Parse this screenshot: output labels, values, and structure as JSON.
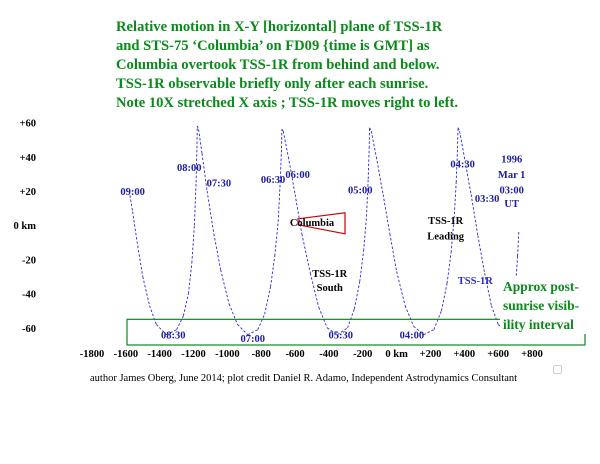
{
  "title_lines": [
    "Relative motion in X-Y [horizontal] plane of TSS-1R",
    "and STS-75 ‘Columbia’ on FD09 {time is GMT] as",
    "Columbia overtook TSS-1R from behind and below.",
    "TSS-1R observable briefly only after each sunrise.",
    "Note 10X stretched X axis ; TSS-1R moves right to left."
  ],
  "credit": "author James Oberg, June 2014; plot credit Daniel R. Adamo, Independent Astrodynamics Consultant",
  "colors": {
    "title": "#0a8a1a",
    "curve": "#2b2bd6",
    "time_label": "#1c1ca8",
    "axis_text": "#000000",
    "columbia_triangle": "#cc0000",
    "interval_box": "#0a8a1a"
  },
  "chart_data": {
    "type": "line",
    "xlim": [
      -1800,
      800
    ],
    "ylim": [
      -70,
      65
    ],
    "x_unit": "km",
    "y_unit": "km",
    "x_ticks": [
      -1800,
      -1600,
      -1400,
      -1200,
      -1000,
      -800,
      -600,
      -400,
      -200,
      0,
      200,
      400,
      600,
      800
    ],
    "x_tick_labels": [
      "-1800",
      "-1600",
      "-1400",
      "-1200",
      "-1000",
      "-800",
      "-600",
      "-400",
      "-200",
      "0 km",
      "+200",
      "+400",
      "+600",
      "+800"
    ],
    "y_ticks": [
      60,
      40,
      20,
      0,
      -20,
      -40,
      -60
    ],
    "y_tick_labels": [
      "+60",
      "+40",
      "+20",
      "0 km",
      "-20",
      "-40",
      "-60"
    ],
    "series": [
      {
        "points": [
          [
            -1580,
            20
          ],
          [
            -1560,
            8
          ],
          [
            -1530,
            -12
          ],
          [
            -1500,
            -30
          ],
          [
            -1460,
            -47
          ],
          [
            -1420,
            -58
          ],
          [
            -1360,
            -64
          ],
          [
            -1300,
            -61
          ],
          [
            -1260,
            -53
          ],
          [
            -1230,
            -40
          ],
          [
            -1210,
            -22
          ],
          [
            -1195,
            0
          ],
          [
            -1185,
            25
          ],
          [
            -1180,
            45
          ],
          [
            -1178,
            58
          ],
          [
            -1170,
            56
          ],
          [
            -1150,
            42
          ],
          [
            -1120,
            20
          ],
          [
            -1080,
            -5
          ],
          [
            -1040,
            -26
          ],
          [
            -990,
            -46
          ],
          [
            -940,
            -58
          ],
          [
            -880,
            -64
          ],
          [
            -820,
            -61
          ],
          [
            -780,
            -52
          ],
          [
            -745,
            -36
          ],
          [
            -720,
            -18
          ],
          [
            -700,
            2
          ],
          [
            -688,
            25
          ],
          [
            -680,
            45
          ],
          [
            -678,
            56
          ],
          [
            -670,
            55
          ],
          [
            -640,
            40
          ],
          [
            -600,
            18
          ],
          [
            -560,
            -5
          ],
          [
            -510,
            -28
          ],
          [
            -460,
            -48
          ],
          [
            -410,
            -60
          ],
          [
            -350,
            -64
          ],
          [
            -290,
            -60
          ],
          [
            -250,
            -49
          ],
          [
            -218,
            -33
          ],
          [
            -195,
            -15
          ],
          [
            -178,
            5
          ],
          [
            -168,
            27
          ],
          [
            -162,
            45
          ],
          [
            -160,
            57
          ],
          [
            -150,
            55
          ],
          [
            -120,
            40
          ],
          [
            -80,
            18
          ],
          [
            -40,
            -5
          ],
          [
            0,
            -27
          ],
          [
            50,
            -47
          ],
          [
            100,
            -59
          ],
          [
            160,
            -64
          ],
          [
            220,
            -61
          ],
          [
            265,
            -50
          ],
          [
            298,
            -34
          ],
          [
            322,
            -16
          ],
          [
            340,
            4
          ],
          [
            352,
            25
          ],
          [
            360,
            45
          ],
          [
            363,
            57
          ],
          [
            372,
            55
          ],
          [
            400,
            40
          ],
          [
            440,
            18
          ],
          [
            480,
            -6
          ],
          [
            520,
            -28
          ],
          [
            560,
            -47
          ],
          [
            600,
            -58
          ],
          [
            640,
            -61
          ],
          [
            670,
            -55
          ],
          [
            690,
            -45
          ],
          [
            705,
            -32
          ],
          [
            715,
            -18
          ],
          [
            722,
            -4
          ]
        ]
      }
    ],
    "time_labels": [
      {
        "text": "09:00",
        "x": -1560,
        "y": 20
      },
      {
        "text": "08:30",
        "x": -1320,
        "y": -64
      },
      {
        "text": "08:00",
        "x": -1225,
        "y": 34
      },
      {
        "text": "07:30",
        "x": -1050,
        "y": 25
      },
      {
        "text": "07:00",
        "x": -850,
        "y": -66
      },
      {
        "text": "06:30",
        "x": -730,
        "y": 27
      },
      {
        "text": "06:00",
        "x": -585,
        "y": 30
      },
      {
        "text": "05:30",
        "x": -330,
        "y": -64
      },
      {
        "text": "05:00",
        "x": -215,
        "y": 21
      },
      {
        "text": "04:30",
        "x": 390,
        "y": 36
      },
      {
        "text": "04:00",
        "x": 90,
        "y": -64
      },
      {
        "text": "03:30",
        "x": 535,
        "y": 16
      },
      {
        "text": "03:00",
        "x": 680,
        "y": 21
      },
      {
        "text": "1996",
        "x": 680,
        "y": 39
      },
      {
        "text": "Mar 1",
        "x": 680,
        "y": 30
      },
      {
        "text": "UT",
        "x": 680,
        "y": 13
      }
    ],
    "annotations": [
      {
        "text": "Columbia",
        "x": -500,
        "y": 2
      },
      {
        "text": "TSS-1R",
        "x": 290,
        "y": 3
      },
      {
        "text": "Leading",
        "x": 290,
        "y": -6
      },
      {
        "text": "TSS-1R",
        "x": -395,
        "y": -28
      },
      {
        "text": "South",
        "x": -395,
        "y": -36
      },
      {
        "text": "TSS-1R",
        "x": 465,
        "y": -32
      }
    ],
    "interval_label": [
      "Approx post-",
      "sunrise visib-",
      "ility interval"
    ],
    "interval_y_range": [
      -70,
      -55
    ]
  }
}
